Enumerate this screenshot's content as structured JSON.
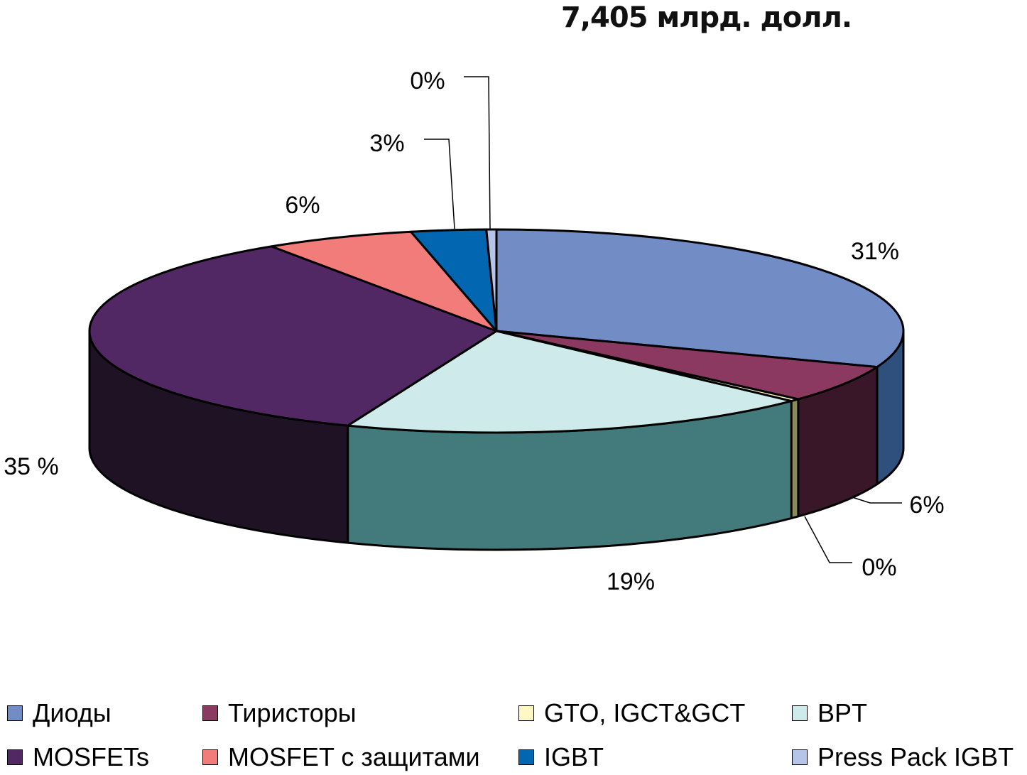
{
  "chart_data": {
    "type": "pie",
    "title": "7,405 млрд. долл.",
    "categories": [
      "Диоды",
      "Тиристоры",
      "GTO, IGCT&GCT",
      "BPT",
      "MOSFETs",
      "MOSFET с защитами",
      "IGBT",
      "Press Pack IGBT"
    ],
    "values": [
      31,
      6,
      0.4,
      19,
      35,
      6,
      3,
      0.4
    ],
    "labels": [
      "31%",
      "6%",
      "0%",
      "19%",
      "35 %",
      "6%",
      "3%",
      "0%"
    ],
    "colors": [
      "#728dc5",
      "#8b3961",
      "#fff8c4",
      "#cfeaea",
      "#512863",
      "#f27c7a",
      "#0366b1",
      "#b5c4e8"
    ],
    "side_colors": [
      "#2f4f7d",
      "#3a1629",
      "#8a8a5a",
      "#437a7b",
      "#1f1224",
      "#8e3c3b",
      "#013b66",
      "#5a6a8a"
    ],
    "legend_position": "bottom",
    "three_d": true
  }
}
